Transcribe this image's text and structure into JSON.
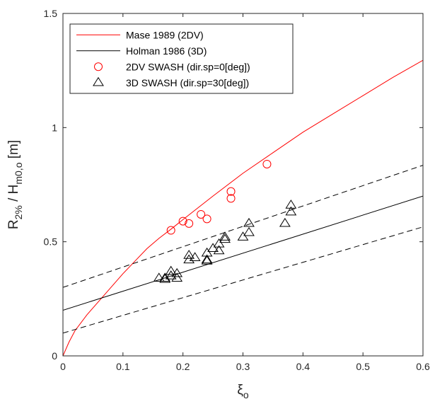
{
  "chart_data": {
    "type": "line",
    "title": "",
    "xlabel": {
      "main": "ξ",
      "sub": "o"
    },
    "ylabel": {
      "parts": [
        {
          "text": "R",
          "sub": false
        },
        {
          "text": "2%",
          "sub": true
        },
        {
          "text": " / H",
          "sub": false
        },
        {
          "text": "m0,o",
          "sub": true
        },
        {
          "text": " [m]",
          "sub": false
        }
      ]
    },
    "xlim": [
      0,
      0.6
    ],
    "ylim": [
      0,
      1.5
    ],
    "xticks": [
      0,
      0.1,
      0.2,
      0.3,
      0.4,
      0.5,
      0.6
    ],
    "xtick_labels": [
      "0",
      "0.1",
      "0.2",
      "0.3",
      "0.4",
      "0.5",
      "0.6"
    ],
    "yticks": [
      0,
      0.5,
      1,
      1.5
    ],
    "ytick_labels": [
      "0",
      "0.5",
      "1",
      "1.5"
    ],
    "grid": false,
    "legend_position": "top-left",
    "colors": {
      "red": "#ff0000",
      "black": "#000000",
      "axis": "#262626"
    },
    "series": [
      {
        "name": "Mase 1989 (2DV)",
        "kind": "line",
        "color": "#ff0000",
        "style": "solid",
        "x": [
          0,
          0.01,
          0.02,
          0.04,
          0.06,
          0.08,
          0.1,
          0.12,
          0.14,
          0.16,
          0.18,
          0.2,
          0.25,
          0.3,
          0.35,
          0.4,
          0.45,
          0.5,
          0.55,
          0.6
        ],
        "y": [
          0,
          0.06,
          0.11,
          0.18,
          0.24,
          0.3,
          0.36,
          0.415,
          0.47,
          0.515,
          0.555,
          0.597,
          0.7,
          0.8,
          0.89,
          0.98,
          1.06,
          1.14,
          1.22,
          1.295
        ]
      },
      {
        "name": "Holman 1986 (3D)",
        "kind": "line",
        "color": "#000000",
        "style": "solid",
        "x": [
          0,
          0.6
        ],
        "y": [
          0.2,
          0.7
        ]
      },
      {
        "kind": "line",
        "color": "#000000",
        "style": "dashed",
        "x": [
          0,
          0.6
        ],
        "y": [
          0.3,
          0.835
        ]
      },
      {
        "kind": "line",
        "color": "#000000",
        "style": "dashed",
        "x": [
          0,
          0.6
        ],
        "y": [
          0.1,
          0.565
        ]
      },
      {
        "name": "2DV SWASH (dir.sp=0[deg])",
        "kind": "scatter",
        "marker": "circle",
        "color": "#ff0000",
        "x": [
          0.18,
          0.2,
          0.21,
          0.23,
          0.24,
          0.28,
          0.28,
          0.34
        ],
        "y": [
          0.55,
          0.59,
          0.58,
          0.62,
          0.6,
          0.72,
          0.69,
          0.84
        ]
      },
      {
        "name": "3D SWASH (dir.sp=30[deg])",
        "kind": "scatter",
        "marker": "triangle",
        "color": "#000000",
        "x": [
          0.16,
          0.17,
          0.17,
          0.18,
          0.18,
          0.19,
          0.19,
          0.21,
          0.21,
          0.22,
          0.24,
          0.24,
          0.24,
          0.25,
          0.26,
          0.26,
          0.27,
          0.27,
          0.3,
          0.31,
          0.31,
          0.37,
          0.38,
          0.38
        ],
        "y": [
          0.34,
          0.34,
          0.335,
          0.37,
          0.35,
          0.36,
          0.34,
          0.44,
          0.42,
          0.43,
          0.45,
          0.42,
          0.415,
          0.47,
          0.46,
          0.49,
          0.51,
          0.52,
          0.52,
          0.58,
          0.54,
          0.58,
          0.66,
          0.63
        ]
      }
    ]
  }
}
